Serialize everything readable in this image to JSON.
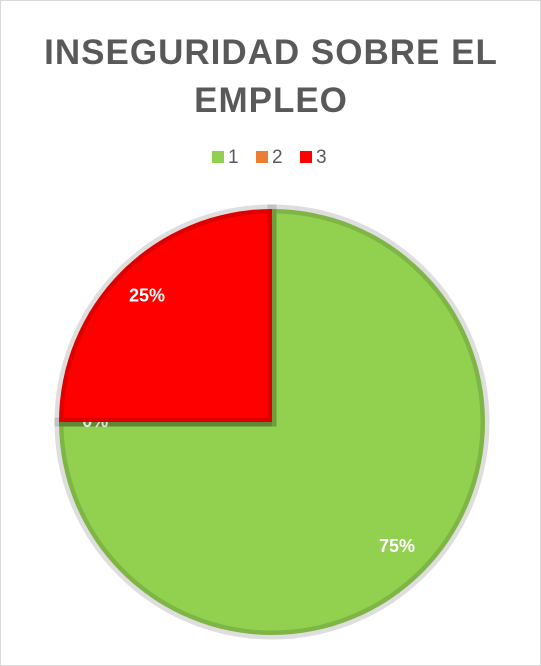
{
  "chart_data": {
    "type": "pie",
    "title": "INSEGURIDAD SOBRE EL EMPLEO",
    "categories": [
      "1",
      "2",
      "3"
    ],
    "values": [
      75,
      0,
      25
    ],
    "value_labels": [
      "75%",
      "0%",
      "25%"
    ],
    "colors": [
      "#92d050",
      "#ed7d31",
      "#ff0000"
    ],
    "legend": "top"
  }
}
